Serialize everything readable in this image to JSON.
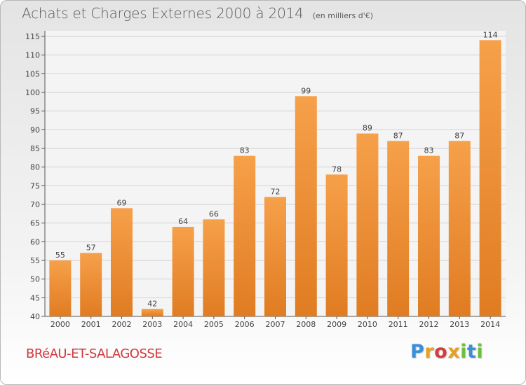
{
  "title": "Achats et Charges Externes 2000 à 2014",
  "subtitle": "(en milliers d'€)",
  "commune": "BRéAU-ET-SALAGOSSE",
  "brand": "Proxiti",
  "colors": {
    "bar_light": "#f6a04a",
    "bar_dark": "#e07c22",
    "axis_text": "#444444",
    "grid": "#d2d2d2",
    "commune": "#d0383c",
    "brand_letters": [
      "#3a8fd8",
      "#e8a020",
      "#d23e3e",
      "#e8a020",
      "#6cbf3a",
      "#3a8fd8",
      "#6cbf3a"
    ]
  },
  "chart_data": {
    "type": "bar",
    "categories": [
      "2000",
      "2001",
      "2002",
      "2003",
      "2004",
      "2005",
      "2006",
      "2007",
      "2008",
      "2009",
      "2010",
      "2011",
      "2012",
      "2013",
      "2014"
    ],
    "values": [
      55,
      57,
      69,
      42,
      64,
      66,
      83,
      72,
      99,
      78,
      89,
      87,
      83,
      87,
      114
    ],
    "ylim": [
      40,
      115
    ],
    "yticks": [
      40,
      45,
      50,
      55,
      60,
      65,
      70,
      75,
      80,
      85,
      90,
      95,
      100,
      105,
      110,
      115
    ],
    "grid": true,
    "data_labels": true
  }
}
